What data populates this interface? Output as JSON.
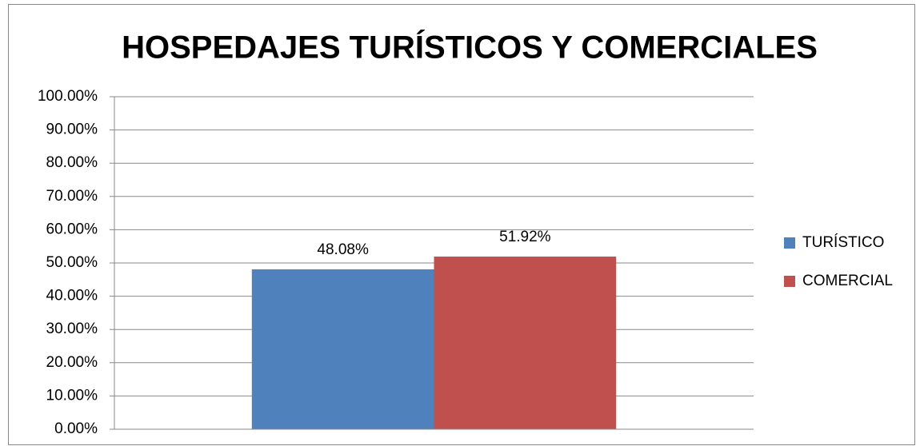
{
  "chart_data": {
    "type": "bar",
    "title": "HOSPEDAJES TURÍSTICOS Y COMERCIALES",
    "categories": [
      null
    ],
    "series": [
      {
        "name": "TURÍSTICO",
        "color": "#4f81bd",
        "values": [
          48.08
        ],
        "value_labels": [
          "48.08%"
        ]
      },
      {
        "name": "COMERCIAL",
        "color": "#c0504d",
        "values": [
          51.92
        ],
        "value_labels": [
          "51.92%"
        ]
      }
    ],
    "ylim": [
      0,
      100
    ],
    "yticks": [
      {
        "value": 0,
        "label": "0.00%"
      },
      {
        "value": 10,
        "label": "10.00%"
      },
      {
        "value": 20,
        "label": "20.00%"
      },
      {
        "value": 30,
        "label": "30.00%"
      },
      {
        "value": 40,
        "label": "40.00%"
      },
      {
        "value": 50,
        "label": "50.00%"
      },
      {
        "value": 60,
        "label": "60.00%"
      },
      {
        "value": 70,
        "label": "70.00%"
      },
      {
        "value": 80,
        "label": "80.00%"
      },
      {
        "value": 90,
        "label": "90.00%"
      },
      {
        "value": 100,
        "label": "100.00%"
      }
    ],
    "grid": true,
    "legend": "right"
  }
}
